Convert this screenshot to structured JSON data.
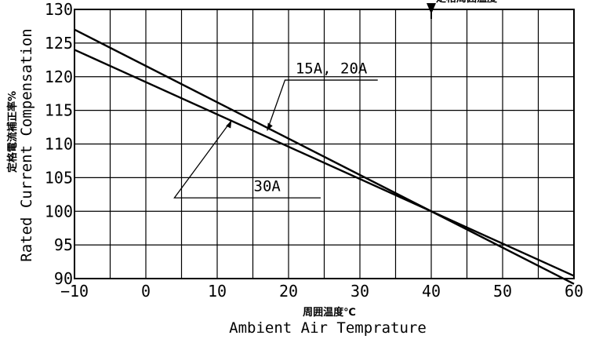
{
  "chart_data": {
    "type": "line",
    "xlabel": "Ambient Air Temprature",
    "xlabel_jp": "周囲温度℃",
    "ylabel": "Rated Current Compensation",
    "ylabel_jp": "定格電流補正率%",
    "xlim": [
      -10,
      60
    ],
    "ylim": [
      90,
      130
    ],
    "x_ticks": [
      "−10",
      "0",
      "10",
      "20",
      "30",
      "40",
      "50",
      "60"
    ],
    "y_ticks": [
      "90",
      "95",
      "100",
      "105",
      "110",
      "115",
      "120",
      "125",
      "130"
    ],
    "grid": true,
    "series": [
      {
        "name": "15A, 20A",
        "x": [
          -10,
          40,
          60
        ],
        "y": [
          127,
          100,
          89.2
        ]
      },
      {
        "name": "30A",
        "x": [
          -10,
          40,
          60
        ],
        "y": [
          124,
          100,
          90.4
        ]
      }
    ],
    "annotations": [
      {
        "text": "15A, 20A",
        "points_to": [
          17,
          112
        ]
      },
      {
        "text": "30A",
        "points_to": [
          12,
          113.5
        ]
      },
      {
        "text": "定格周囲温度",
        "marker": "downward-triangle",
        "x": 40
      }
    ]
  }
}
